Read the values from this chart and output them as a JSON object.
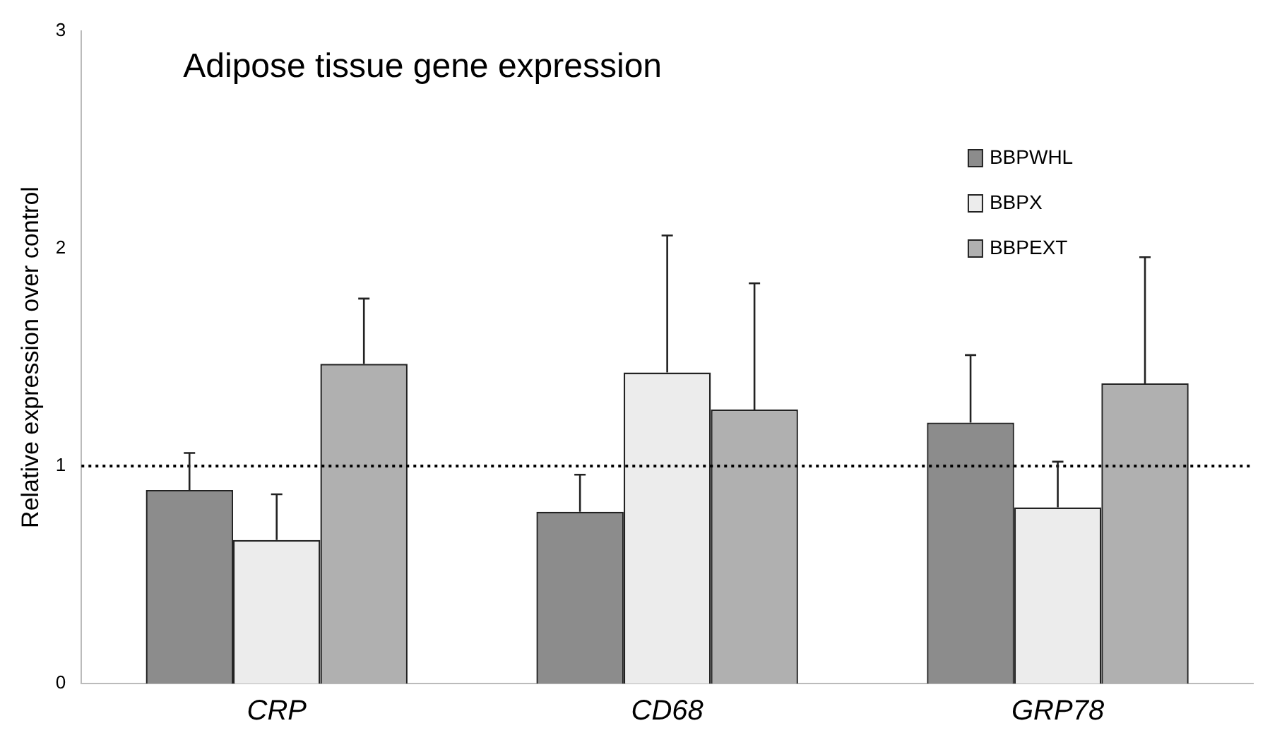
{
  "chart_data": {
    "type": "bar",
    "title": "Adipose tissue gene expression",
    "ylabel": "Relative expression over control",
    "categories": [
      "CRP",
      "CD68",
      "GRP78"
    ],
    "series": [
      {
        "name": "BBPWHL",
        "color": "#8c8c8c",
        "values": [
          0.89,
          0.79,
          1.2
        ],
        "errors": [
          [
            0.89,
            1.06
          ],
          [
            0.79,
            0.96
          ],
          [
            1.2,
            1.51
          ]
        ]
      },
      {
        "name": "BBPX",
        "color": "#ececec",
        "values": [
          0.66,
          1.43,
          0.81
        ],
        "errors": [
          [
            0.66,
            0.87
          ],
          [
            1.43,
            2.06
          ],
          [
            0.81,
            1.02
          ]
        ]
      },
      {
        "name": "BBPEXT",
        "color": "#b0b0b0",
        "values": [
          1.47,
          1.26,
          1.38
        ],
        "errors": [
          [
            1.47,
            1.77
          ],
          [
            1.26,
            1.84
          ],
          [
            1.38,
            1.96
          ]
        ]
      }
    ],
    "ylim": [
      0,
      3
    ],
    "yticks": [
      0,
      1,
      2,
      3
    ],
    "grid": false,
    "legend": "top right",
    "ref_lines": [
      {
        "axis": "y",
        "value": 1,
        "color": "#000000",
        "line_style": "dotted"
      }
    ]
  }
}
